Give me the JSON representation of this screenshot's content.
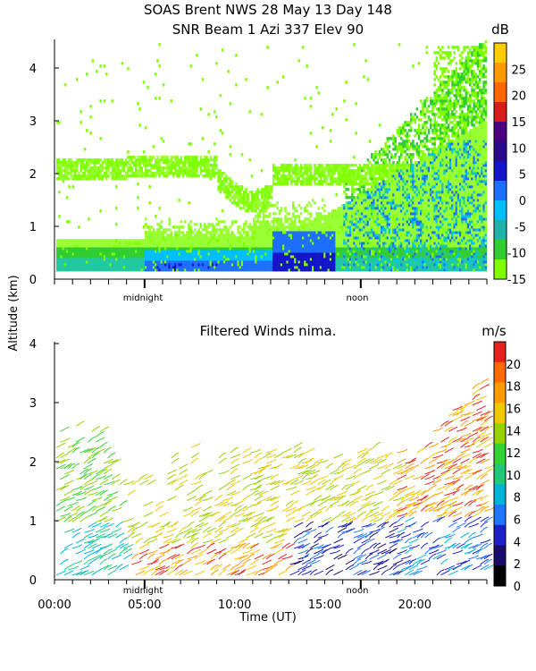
{
  "chart_data": [
    {
      "type": "heatmap",
      "title": "SOAS Brent NWS  28 May 13 Day 148",
      "subtitle": "SNR Beam 1 Azi 337 Elev 90",
      "ylabel": "Altitude (km)",
      "xlim": [
        0,
        24
      ],
      "ylim": [
        0,
        4.6
      ],
      "y_ticks": [
        "0",
        "1",
        "2",
        "3",
        "4"
      ],
      "x_marker_labels": [
        "midnight",
        "noon"
      ],
      "colorbar": {
        "unit": "dB",
        "range": [
          -15,
          30
        ],
        "tick_labels": [
          "-15",
          "-10",
          "-5",
          "0",
          "5",
          "10",
          "15",
          "20",
          "25"
        ],
        "colors": [
          "#7fff00",
          "#32cd32",
          "#20b2aa",
          "#00bfff",
          "#1e6fff",
          "#1414c8",
          "#2a0a8c",
          "#4b0082",
          "#d81b1b",
          "#ff6600",
          "#ff9900",
          "#ffcc00"
        ]
      }
    },
    {
      "type": "scatter",
      "title": "Filtered Winds nima.",
      "xlabel": "Time (UT)",
      "ylabel": "Altitude (km)",
      "xlim": [
        0,
        24
      ],
      "ylim": [
        0,
        4
      ],
      "x_ticks": [
        "00:00",
        "05:00",
        "10:00",
        "15:00",
        "20:00"
      ],
      "y_ticks": [
        "0",
        "1",
        "2",
        "3",
        "4"
      ],
      "x_marker_labels": [
        "midnight",
        "noon"
      ],
      "colorbar": {
        "unit": "m/s",
        "range": [
          0,
          22
        ],
        "tick_labels": [
          "0",
          "2",
          "4",
          "6",
          "8",
          "10",
          "12",
          "14",
          "16",
          "18",
          "20"
        ],
        "colors": [
          "#000000",
          "#1a0a6b",
          "#2020c8",
          "#1e78ff",
          "#00b4d8",
          "#20c878",
          "#32d232",
          "#96d200",
          "#f0c800",
          "#ff9a00",
          "#ff6a00",
          "#e82020"
        ]
      }
    }
  ],
  "colors": {
    "snr_palette": [
      "#7fff00",
      "#9aff32",
      "#32cd32",
      "#20c8a0",
      "#00bfff",
      "#1e6fff",
      "#1414c8",
      "#3a0a9c",
      "#c81414"
    ],
    "wind_palette": [
      "#1a0a6b",
      "#2020c8",
      "#1e78ff",
      "#00b4d8",
      "#20c878",
      "#32d232",
      "#96d200",
      "#f0c800",
      "#ff9a00",
      "#e82020"
    ]
  }
}
